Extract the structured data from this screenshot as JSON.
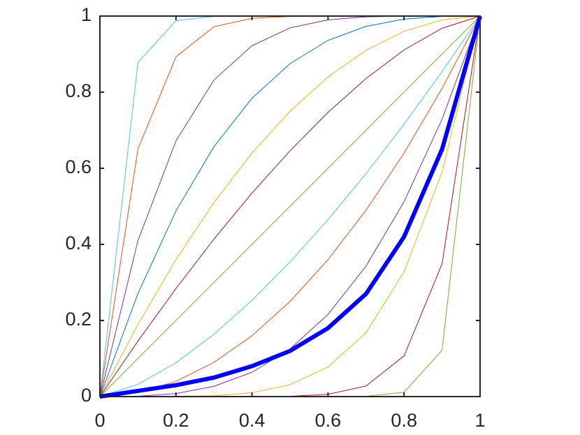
{
  "chart_data": {
    "type": "line",
    "x": [
      0,
      0.1,
      0.2,
      0.3,
      0.4,
      0.5,
      0.6,
      0.7,
      0.8,
      0.9,
      1
    ],
    "xlim": [
      0,
      1
    ],
    "ylim": [
      0,
      1
    ],
    "xticks": [
      0,
      0.2,
      0.4,
      0.6,
      0.8,
      1
    ],
    "yticks": [
      0,
      0.2,
      0.4,
      0.6,
      0.8,
      1
    ],
    "grid": false,
    "series": [
      {
        "color": "#4dbeee",
        "width": 1,
        "values": [
          0,
          0.878,
          0.988,
          0.999,
          1,
          1,
          1,
          1,
          1,
          1,
          1
        ]
      },
      {
        "color": "#d95319",
        "width": 1,
        "values": [
          0,
          0.651,
          0.893,
          0.972,
          0.994,
          0.999,
          1,
          1,
          1,
          1,
          1
        ]
      },
      {
        "color": "#7e2f8e",
        "width": 1,
        "values": [
          0,
          0.41,
          0.672,
          0.832,
          0.922,
          0.969,
          0.99,
          0.998,
          0.9997,
          1,
          1
        ]
      },
      {
        "color": "#0072bd",
        "width": 1,
        "values": [
          0,
          0.271,
          0.488,
          0.657,
          0.784,
          0.875,
          0.936,
          0.973,
          0.992,
          0.999,
          1
        ]
      },
      {
        "color": "#edb120",
        "width": 1,
        "values": [
          0,
          0.19,
          0.36,
          0.51,
          0.64,
          0.75,
          0.84,
          0.91,
          0.96,
          0.99,
          1
        ]
      },
      {
        "color": "#a2142f",
        "width": 1,
        "values": [
          0,
          0.146,
          0.284,
          0.414,
          0.535,
          0.646,
          0.747,
          0.836,
          0.911,
          0.968,
          1
        ]
      },
      {
        "color": "#77ac30",
        "width": 1,
        "values": [
          0,
          0.1,
          0.2,
          0.3,
          0.4,
          0.5,
          0.6,
          0.7,
          0.8,
          0.9,
          1
        ]
      },
      {
        "color": "#4dbeee",
        "width": 1,
        "values": [
          0,
          0.032,
          0.089,
          0.164,
          0.253,
          0.354,
          0.465,
          0.586,
          0.716,
          0.854,
          1
        ]
      },
      {
        "color": "#d95319",
        "width": 1,
        "values": [
          0,
          0.01,
          0.04,
          0.09,
          0.16,
          0.25,
          0.36,
          0.49,
          0.64,
          0.81,
          1
        ]
      },
      {
        "color": "#7e2f8e",
        "width": 1,
        "values": [
          0,
          0.001,
          0.008,
          0.027,
          0.064,
          0.125,
          0.216,
          0.343,
          0.512,
          0.729,
          1
        ]
      },
      {
        "color": "#edb120",
        "width": 1,
        "values": [
          0,
          0,
          0.0003,
          0.0024,
          0.0102,
          0.0313,
          0.0778,
          0.168,
          0.328,
          0.59,
          1
        ]
      },
      {
        "color": "#a2142f",
        "width": 1,
        "values": [
          0,
          0,
          0,
          0,
          0.0001,
          0.001,
          0.006,
          0.028,
          0.107,
          0.349,
          1
        ]
      },
      {
        "color": "#77ac30",
        "width": 1,
        "values": [
          0,
          0,
          0,
          0,
          0,
          0,
          0,
          0.0008,
          0.0115,
          0.1216,
          1
        ]
      },
      {
        "color": "#0000ff",
        "width": 6,
        "values": [
          0,
          0.015,
          0.03,
          0.05,
          0.08,
          0.12,
          0.18,
          0.27,
          0.42,
          0.65,
          1
        ]
      }
    ]
  }
}
